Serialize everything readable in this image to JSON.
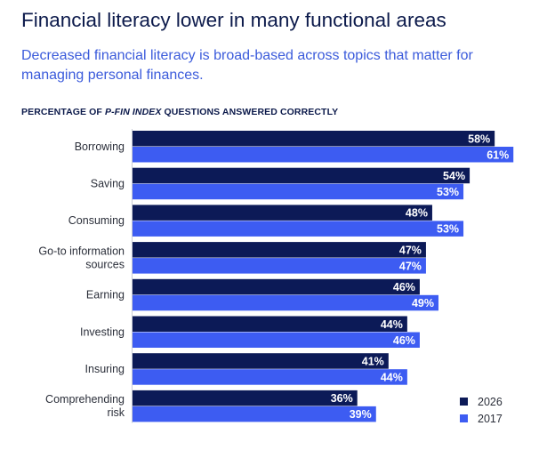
{
  "title": "Financial literacy lower in many functional areas",
  "subtitle": "Decreased financial literacy is broad-based across topics that matter for managing personal finances.",
  "chart_heading": {
    "prefix": "PERCENTAGE OF ",
    "emphasis": "P-FIN INDEX",
    "suffix": " QUESTIONS ANSWERED CORRECTLY"
  },
  "colors": {
    "series_2026": "#0c1a57",
    "series_2017": "#3d5cf2",
    "title": "#0c1a4b",
    "subtitle": "#3b5bdb"
  },
  "chart_data": {
    "type": "bar",
    "orientation": "horizontal",
    "categories": [
      [
        "Borrowing"
      ],
      [
        "Saving"
      ],
      [
        "Consuming"
      ],
      [
        "Go-to information",
        "sources"
      ],
      [
        "Earning"
      ],
      [
        "Investing"
      ],
      [
        "Insuring"
      ],
      [
        "Comprehending",
        "risk"
      ]
    ],
    "series": [
      {
        "name": "2026",
        "values": [
          58,
          54,
          48,
          47,
          46,
          44,
          41,
          36
        ],
        "labels": [
          "58%",
          "54%",
          "48%",
          "47%",
          "46%",
          "44%",
          "41%",
          "36%"
        ],
        "color": "#0c1a57"
      },
      {
        "name": "2017",
        "values": [
          61,
          53,
          53,
          47,
          49,
          46,
          44,
          39
        ],
        "labels": [
          "61%",
          "53%",
          "53%",
          "47%",
          "49%",
          "46%",
          "44%",
          "39%"
        ],
        "color": "#3d5cf2"
      }
    ],
    "value_unit": "%",
    "xlim": [
      0,
      100
    ],
    "legend_position": "bottom-right",
    "grid": false
  }
}
